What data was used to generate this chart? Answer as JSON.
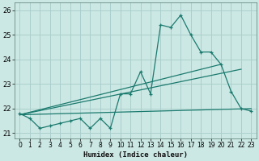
{
  "title": "",
  "xlabel": "Humidex (Indice chaleur)",
  "bg_color": "#cce8e4",
  "grid_color": "#aacfcc",
  "line_color": "#1a7a6e",
  "xlim": [
    -0.5,
    23.5
  ],
  "ylim": [
    20.8,
    26.3
  ],
  "xticks": [
    0,
    1,
    2,
    3,
    4,
    5,
    6,
    7,
    8,
    9,
    10,
    11,
    12,
    13,
    14,
    15,
    16,
    17,
    18,
    19,
    20,
    21,
    22,
    23
  ],
  "yticks": [
    21,
    22,
    23,
    24,
    25,
    26
  ],
  "series1_x": [
    0,
    1,
    2,
    3,
    4,
    5,
    6,
    7,
    8,
    9,
    10,
    11,
    12,
    13,
    14,
    15,
    16,
    17,
    18,
    19,
    20,
    21,
    22,
    23
  ],
  "series1_y": [
    21.8,
    21.6,
    21.2,
    21.3,
    21.4,
    21.5,
    21.6,
    21.2,
    21.6,
    21.2,
    22.6,
    22.6,
    23.5,
    22.6,
    25.4,
    25.3,
    25.8,
    25.0,
    24.3,
    24.3,
    23.8,
    22.7,
    22.0,
    21.9
  ],
  "trend1_x": [
    0,
    23
  ],
  "trend1_y": [
    21.75,
    22.0
  ],
  "trend2_x": [
    0,
    20
  ],
  "trend2_y": [
    21.75,
    23.8
  ],
  "trend3_x": [
    0,
    22
  ],
  "trend3_y": [
    21.75,
    23.6
  ]
}
